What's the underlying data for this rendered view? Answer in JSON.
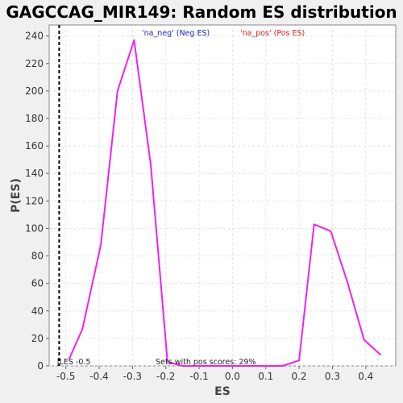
{
  "chart_data": {
    "type": "line",
    "title": "GAGCCAG_MIR149: Random ES distribution",
    "xlabel": "ES",
    "ylabel": "P(ES)",
    "xlim": [
      -0.55,
      0.49
    ],
    "ylim": [
      0,
      248
    ],
    "x_ticks": [
      -0.5,
      -0.4,
      -0.3,
      -0.2,
      -0.1,
      0.0,
      0.1,
      0.2,
      0.3,
      0.4
    ],
    "x_tick_labels": [
      "-0.5",
      "-0.4",
      "-0.3",
      "-0.2",
      "-0.1",
      "0.0",
      "0.1",
      "0.2",
      "0.3",
      "0.4"
    ],
    "y_ticks": [
      0,
      20,
      40,
      60,
      80,
      100,
      120,
      140,
      160,
      180,
      200,
      220,
      240
    ],
    "y_tick_labels": [
      "0",
      "20",
      "40",
      "60",
      "80",
      "100",
      "120",
      "140",
      "160",
      "180",
      "200",
      "220",
      "240"
    ],
    "grid": true,
    "legend": {
      "position": "top",
      "entries": [
        {
          "label": "'na_neg' (Neg ES)",
          "color": "#2222cc"
        },
        {
          "label": "'na_pos' (Pos ES)",
          "color": "#e02020"
        }
      ]
    },
    "series": [
      {
        "color": "#ee22ee",
        "x": [
          -0.49,
          -0.45,
          -0.395,
          -0.345,
          -0.295,
          -0.245,
          -0.195,
          -0.15,
          -0.1,
          -0.05,
          0.0,
          0.05,
          0.1,
          0.15,
          0.2,
          0.245,
          0.295,
          0.345,
          0.395,
          0.445
        ],
        "y": [
          5,
          27,
          88,
          200,
          237,
          146,
          3,
          0,
          0,
          0,
          0,
          0,
          0,
          0,
          4,
          103,
          98,
          61,
          19,
          8
        ]
      }
    ],
    "annotations": {
      "es_marker_label": "|LES -0.5",
      "es_marker_x": -0.52,
      "sets_text": "Sets with pos scores: 29%"
    }
  }
}
